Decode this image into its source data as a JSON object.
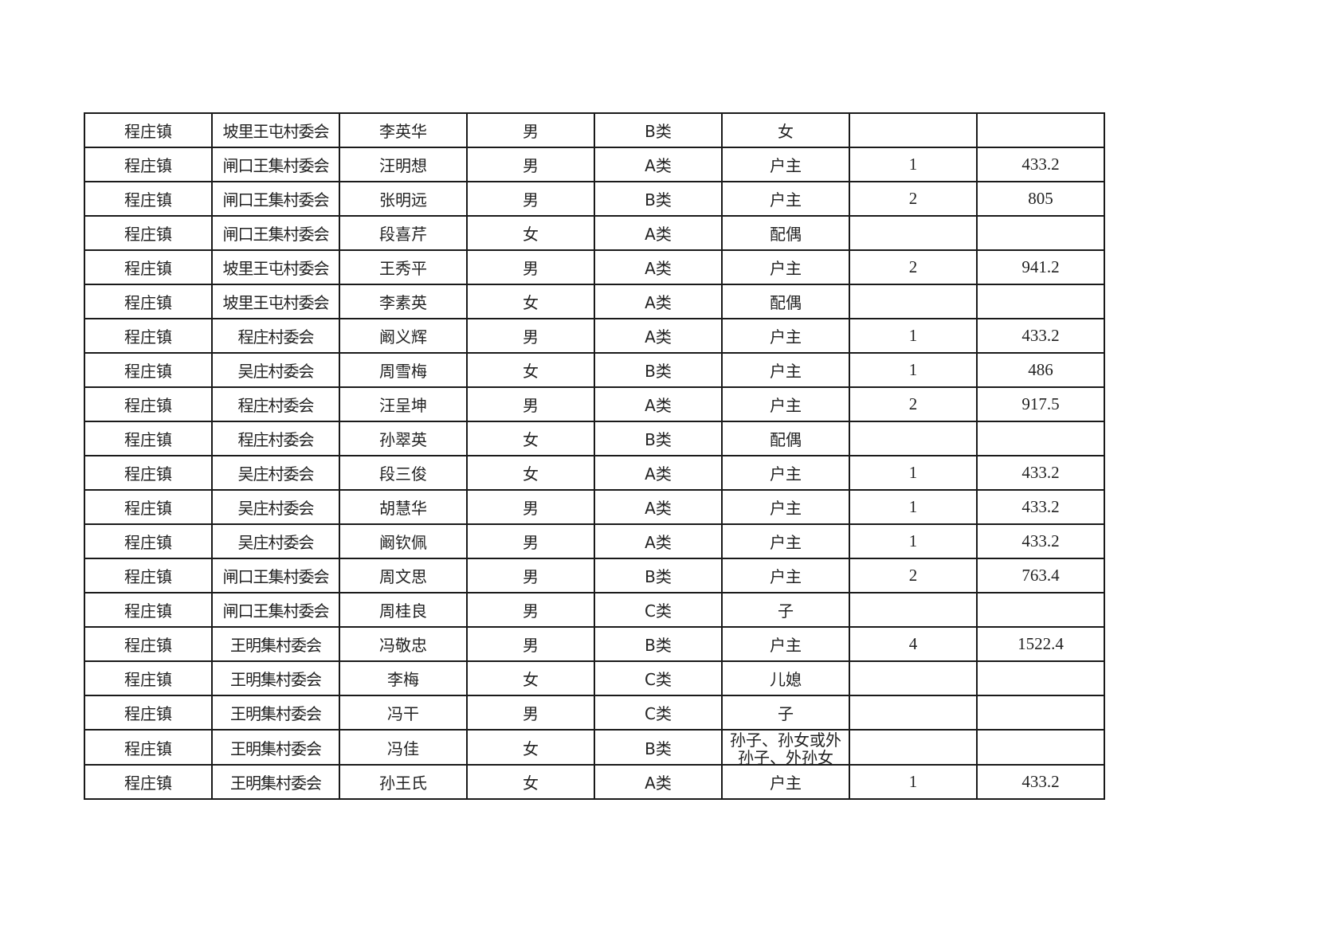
{
  "rows": [
    {
      "town": "程庄镇",
      "village": "坡里王屯村委会",
      "name": "李英华",
      "gender": "男",
      "category": "B类",
      "relation": "女",
      "count": "",
      "amount": ""
    },
    {
      "town": "程庄镇",
      "village": "闸口王集村委会",
      "name": "汪明想",
      "gender": "男",
      "category": "A类",
      "relation": "户主",
      "count": "1",
      "amount": "433.2"
    },
    {
      "town": "程庄镇",
      "village": "闸口王集村委会",
      "name": "张明远",
      "gender": "男",
      "category": "B类",
      "relation": "户主",
      "count": "2",
      "amount": "805"
    },
    {
      "town": "程庄镇",
      "village": "闸口王集村委会",
      "name": "段喜芹",
      "gender": "女",
      "category": "A类",
      "relation": "配偶",
      "count": "",
      "amount": ""
    },
    {
      "town": "程庄镇",
      "village": "坡里王屯村委会",
      "name": "王秀平",
      "gender": "男",
      "category": "A类",
      "relation": "户主",
      "count": "2",
      "amount": "941.2"
    },
    {
      "town": "程庄镇",
      "village": "坡里王屯村委会",
      "name": "李素英",
      "gender": "女",
      "category": "A类",
      "relation": "配偶",
      "count": "",
      "amount": ""
    },
    {
      "town": "程庄镇",
      "village": "程庄村委会",
      "name": "阚义辉",
      "gender": "男",
      "category": "A类",
      "relation": "户主",
      "count": "1",
      "amount": "433.2"
    },
    {
      "town": "程庄镇",
      "village": "吴庄村委会",
      "name": "周雪梅",
      "gender": "女",
      "category": "B类",
      "relation": "户主",
      "count": "1",
      "amount": "486"
    },
    {
      "town": "程庄镇",
      "village": "程庄村委会",
      "name": "汪呈坤",
      "gender": "男",
      "category": "A类",
      "relation": "户主",
      "count": "2",
      "amount": "917.5"
    },
    {
      "town": "程庄镇",
      "village": "程庄村委会",
      "name": "孙翠英",
      "gender": "女",
      "category": "B类",
      "relation": "配偶",
      "count": "",
      "amount": ""
    },
    {
      "town": "程庄镇",
      "village": "吴庄村委会",
      "name": "段三俊",
      "gender": "女",
      "category": "A类",
      "relation": "户主",
      "count": "1",
      "amount": "433.2"
    },
    {
      "town": "程庄镇",
      "village": "吴庄村委会",
      "name": "胡慧华",
      "gender": "男",
      "category": "A类",
      "relation": "户主",
      "count": "1",
      "amount": "433.2"
    },
    {
      "town": "程庄镇",
      "village": "吴庄村委会",
      "name": "阚钦佩",
      "gender": "男",
      "category": "A类",
      "relation": "户主",
      "count": "1",
      "amount": "433.2"
    },
    {
      "town": "程庄镇",
      "village": "闸口王集村委会",
      "name": "周文思",
      "gender": "男",
      "category": "B类",
      "relation": "户主",
      "count": "2",
      "amount": "763.4"
    },
    {
      "town": "程庄镇",
      "village": "闸口王集村委会",
      "name": "周桂良",
      "gender": "男",
      "category": "C类",
      "relation": "子",
      "count": "",
      "amount": ""
    },
    {
      "town": "程庄镇",
      "village": "王明集村委会",
      "name": "冯敬忠",
      "gender": "男",
      "category": "B类",
      "relation": "户主",
      "count": "4",
      "amount": "1522.4"
    },
    {
      "town": "程庄镇",
      "village": "王明集村委会",
      "name": "李梅",
      "gender": "女",
      "category": "C类",
      "relation": "儿媳",
      "count": "",
      "amount": ""
    },
    {
      "town": "程庄镇",
      "village": "王明集村委会",
      "name": "冯干",
      "gender": "男",
      "category": "C类",
      "relation": "子",
      "count": "",
      "amount": ""
    },
    {
      "town": "程庄镇",
      "village": "王明集村委会",
      "name": "冯佳",
      "gender": "女",
      "category": "B类",
      "relation": "孙子、孙女或外孙子、外孙女",
      "count": "",
      "amount": ""
    },
    {
      "town": "程庄镇",
      "village": "王明集村委会",
      "name": "孙王氏",
      "gender": "女",
      "category": "A类",
      "relation": "户主",
      "count": "1",
      "amount": "433.2"
    }
  ]
}
